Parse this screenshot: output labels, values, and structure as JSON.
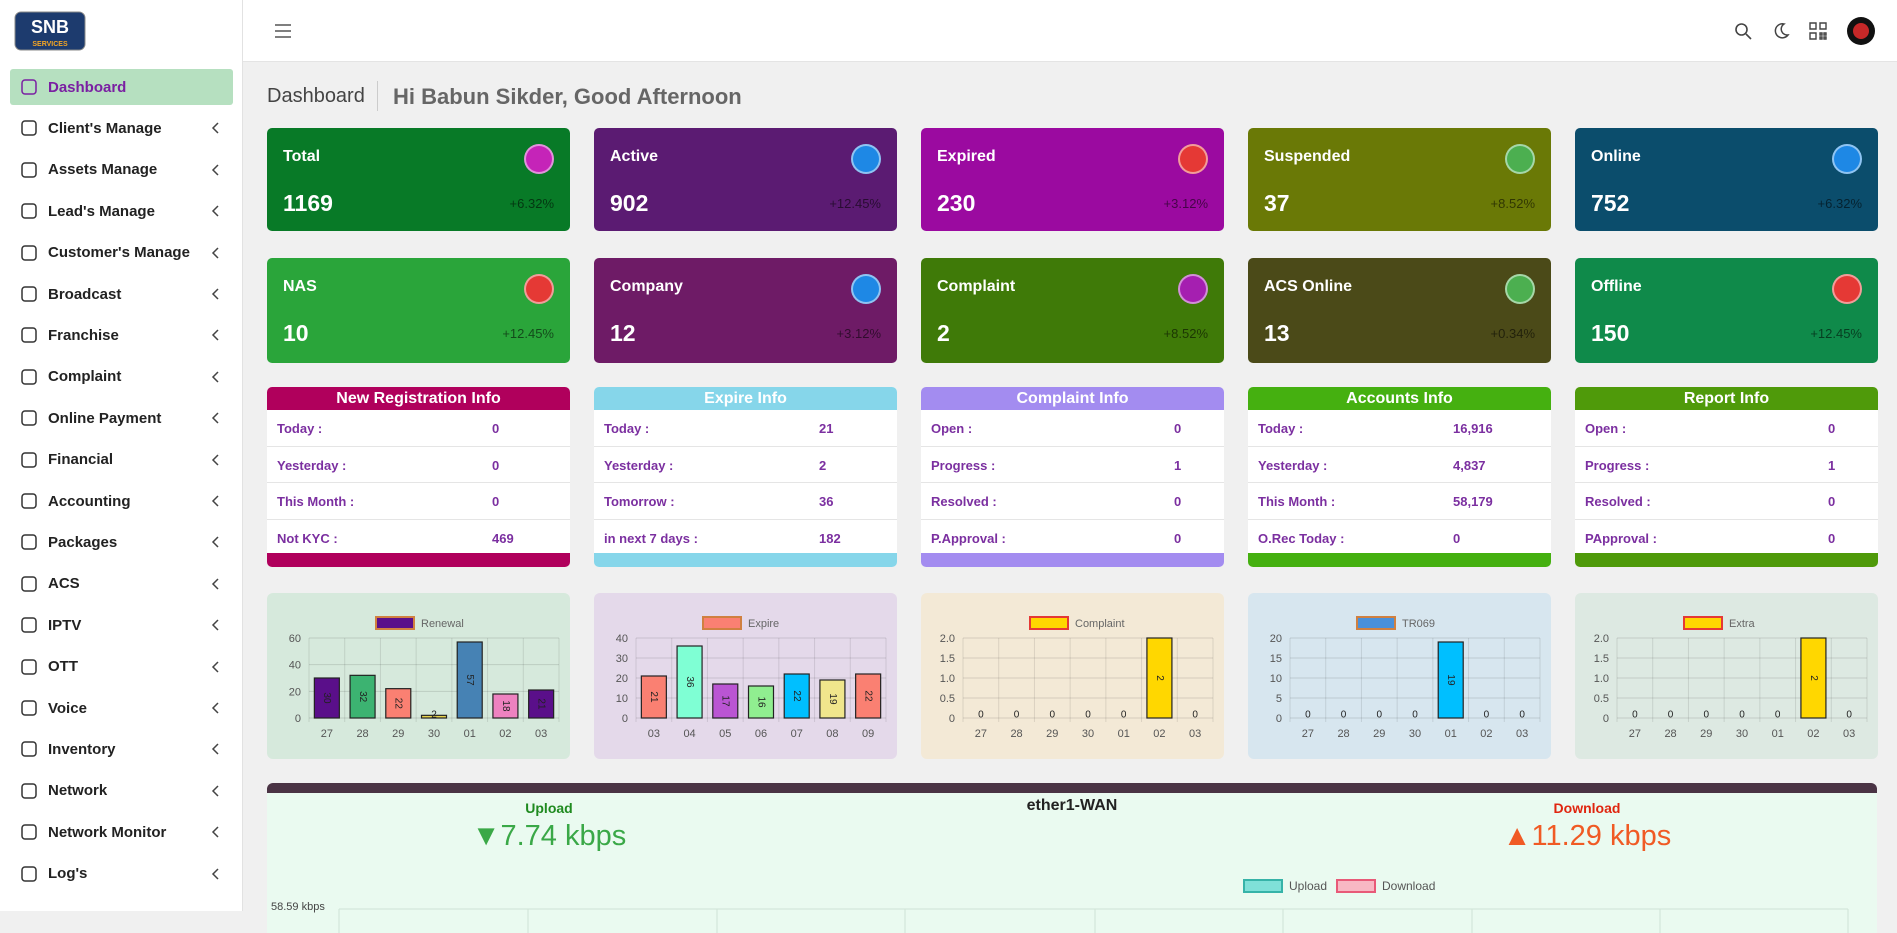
{
  "logo": {
    "main": "SNB",
    "sub": "SERVICES"
  },
  "sidebar": {
    "menu": [
      "Dashboard",
      "Client's Manage",
      "Assets Manage",
      "Lead's Manage",
      "Customer's Manage",
      "Broadcast",
      "Franchise",
      "Complaint",
      "Online Payment",
      "Financial",
      "Accounting",
      "Packages",
      "ACS",
      "IPTV",
      "OTT",
      "Voice",
      "Inventory",
      "Network",
      "Network Monitor",
      "Log's"
    ]
  },
  "header": {
    "breadcrumb": "Dashboard",
    "greeting": "Hi Babun Sikder, Good Afternoon"
  },
  "stat_cards": [
    {
      "label": "Total",
      "value": "1169",
      "change": "+6.32%",
      "color": "#087a27",
      "icon": "#c524b8"
    },
    {
      "label": "Active",
      "value": "902",
      "change": "+12.45%",
      "color": "#5b1b72",
      "icon": "#1e88e5"
    },
    {
      "label": "Expired",
      "value": "230",
      "change": "+3.12%",
      "color": "#9b0aa0",
      "icon": "#e53935"
    },
    {
      "label": "Suspended",
      "value": "37",
      "change": "+8.52%",
      "color": "#6a7906",
      "icon": "#4caf50"
    },
    {
      "label": "Online",
      "value": "752",
      "change": "+6.32%",
      "color": "#0b4d6c",
      "icon": "#1e88e5"
    },
    {
      "label": "NAS",
      "value": "10",
      "change": "+12.45%",
      "color": "#2aa53a",
      "icon": "#e53935"
    },
    {
      "label": "Company",
      "value": "12",
      "change": "+3.12%",
      "color": "#6e1b66",
      "icon": "#1e88e5"
    },
    {
      "label": "Complaint",
      "value": "2",
      "change": "+8.52%",
      "color": "#3f7a08",
      "icon": "#a51fb0"
    },
    {
      "label": "ACS Online",
      "value": "13",
      "change": "+0.34%",
      "color": "#4b4a18",
      "icon": "#4caf50"
    },
    {
      "label": "Offline",
      "value": "150",
      "change": "+12.45%",
      "color": "#0f8a4a",
      "icon": "#e53935"
    }
  ],
  "info_panels": [
    {
      "title": "New Registration Info",
      "color": "#b0005c",
      "rows": [
        [
          "Today :",
          "0"
        ],
        [
          "Yesterday :",
          "0"
        ],
        [
          "This Month :",
          "0"
        ],
        [
          "Not KYC :",
          "469"
        ]
      ]
    },
    {
      "title": "Expire Info",
      "color": "#86d6ea",
      "rows": [
        [
          "Today :",
          "21"
        ],
        [
          "Yesterday :",
          "2"
        ],
        [
          "Tomorrow :",
          "36"
        ],
        [
          "in next 7 days :",
          "182"
        ]
      ]
    },
    {
      "title": "Complaint Info",
      "color": "#a38cf0",
      "rows": [
        [
          "Open :",
          "0"
        ],
        [
          "Progress :",
          "1"
        ],
        [
          "Resolved :",
          "0"
        ],
        [
          "P.Approval :",
          "0"
        ]
      ]
    },
    {
      "title": "Accounts Info",
      "color": "#45b010",
      "rows": [
        [
          "Today :",
          "16,916"
        ],
        [
          "Yesterday :",
          "4,837"
        ],
        [
          "This Month :",
          "58,179"
        ],
        [
          "O.Rec Today :",
          "0"
        ]
      ]
    },
    {
      "title": "Report Info",
      "color": "#4f9a0a",
      "rows": [
        [
          "Open :",
          "0"
        ],
        [
          "Progress :",
          "1"
        ],
        [
          "Resolved :",
          "0"
        ],
        [
          "PApproval :",
          "0"
        ]
      ]
    }
  ],
  "chart_data": [
    {
      "type": "bar",
      "legend": "Renewal",
      "color": "#5a0f8a",
      "background": "#d6e9dc",
      "categories": [
        "27",
        "28",
        "29",
        "30",
        "01",
        "02",
        "03"
      ],
      "values": [
        30,
        32,
        22,
        2,
        57,
        18,
        21
      ],
      "colors": [
        "#5a0f8a",
        "#3cb371",
        "#fa8072",
        "#e8d44d",
        "#4682b4",
        "#ee82c0",
        "#5a0f8a"
      ],
      "ylim": [
        0,
        60
      ],
      "yticks": [
        0,
        20,
        40,
        60
      ]
    },
    {
      "type": "bar",
      "legend": "Expire",
      "color": "#fa8072",
      "background": "#e4d9ea",
      "categories": [
        "03",
        "04",
        "05",
        "06",
        "07",
        "08",
        "09"
      ],
      "values": [
        21,
        36,
        17,
        16,
        22,
        19,
        22
      ],
      "colors": [
        "#fa8072",
        "#7fffd4",
        "#ba55d3",
        "#90ee90",
        "#00bfff",
        "#f0e68c",
        "#fa8072"
      ],
      "ylim": [
        0,
        40
      ],
      "yticks": [
        0,
        10,
        20,
        30,
        40
      ]
    },
    {
      "type": "bar",
      "legend": "Complaint",
      "color": "#ffd700",
      "background": "#f3e9d6",
      "categories": [
        "27",
        "28",
        "29",
        "30",
        "01",
        "02",
        "03"
      ],
      "values": [
        0,
        0,
        0,
        0,
        0,
        2,
        0
      ],
      "colors": [
        "#ffd700",
        "#ffd700",
        "#ffd700",
        "#ffd700",
        "#ffd700",
        "#ffd700",
        "#ffd700"
      ],
      "ylim": [
        0,
        2
      ],
      "yticks": [
        0,
        0.5,
        {
          "value": 1,
          "label": "1.0"
        },
        1.5,
        {
          "value": 2,
          "label": "2.0"
        }
      ]
    },
    {
      "type": "bar",
      "legend": "TR069",
      "color": "#4a90d9",
      "background": "#d7e6ef",
      "categories": [
        "27",
        "28",
        "29",
        "30",
        "01",
        "02",
        "03"
      ],
      "values": [
        0,
        0,
        0,
        0,
        19,
        0,
        0
      ],
      "colors": [
        "#00bfff",
        "#00bfff",
        "#00bfff",
        "#00bfff",
        "#00bfff",
        "#00bfff",
        "#00bfff"
      ],
      "ylim": [
        0,
        20
      ],
      "yticks": [
        0,
        5,
        10,
        15,
        20
      ]
    },
    {
      "type": "bar",
      "legend": "Extra",
      "color": "#ffd700",
      "background": "#dde9e2",
      "categories": [
        "27",
        "28",
        "29",
        "30",
        "01",
        "02",
        "03"
      ],
      "values": [
        0,
        0,
        0,
        0,
        0,
        2,
        0
      ],
      "colors": [
        "#ffd700",
        "#ffd700",
        "#ffd700",
        "#ffd700",
        "#ffd700",
        "#ffd700",
        "#ffd700"
      ],
      "ylim": [
        0,
        2
      ],
      "yticks": [
        0,
        0.5,
        {
          "value": 1,
          "label": "1.0"
        },
        1.5,
        {
          "value": 2,
          "label": "2.0"
        }
      ]
    }
  ],
  "traffic": {
    "interface": "ether1-WAN",
    "upload_label": "Upload",
    "upload_value": "▼7.74 kbps",
    "download_label": "Download",
    "download_value": "▲11.29 kbps",
    "legend": [
      "Upload",
      "Download"
    ],
    "axis_label": "58.59 kbps"
  }
}
